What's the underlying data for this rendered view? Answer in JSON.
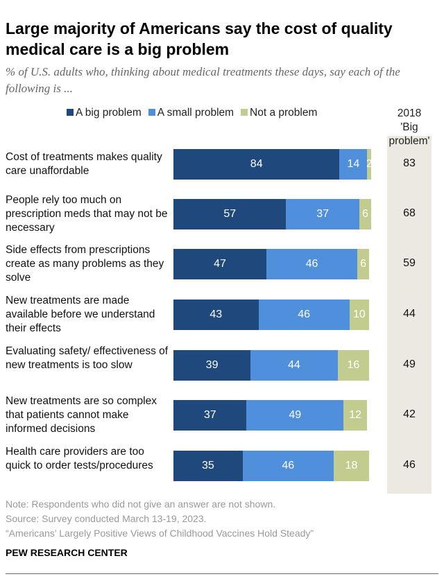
{
  "chart_data": {
    "type": "bar",
    "orientation": "horizontal-stacked",
    "title": "Large majority of Americans say the cost of quality medical care is a big problem",
    "subtitle": "% of U.S. adults who, thinking about medical treatments these days, say each of the following is ...",
    "categories": [
      "Cost of treatments makes quality care unaffordable",
      "People rely too much on prescription meds that may not be necessary",
      "Side effects from prescriptions create as many problems as they solve",
      "New treatments are made available before we understand their effects",
      "Evaluating safety/ effectiveness of new treatments is too slow",
      "New treatments are so complex that patients cannot make informed decisions",
      "Health care providers are too quick to order tests/procedures"
    ],
    "series": [
      {
        "name": "A big problem",
        "color": "#1f487c",
        "values": [
          84,
          57,
          47,
          43,
          39,
          37,
          35
        ]
      },
      {
        "name": "A small problem",
        "color": "#4f8fdc",
        "values": [
          14,
          37,
          46,
          46,
          44,
          49,
          46
        ]
      },
      {
        "name": "Not a problem",
        "color": "#c3cc8f",
        "values": [
          2,
          6,
          6,
          10,
          16,
          12,
          18
        ]
      }
    ],
    "column_2018": {
      "header_year": "2018",
      "header_label": "'Big problem'",
      "values": [
        83,
        68,
        59,
        44,
        49,
        42,
        46
      ]
    },
    "xlim": [
      0,
      100
    ],
    "legend": "top"
  },
  "footer": {
    "note": "Note: Respondents who did not give an answer are not shown.",
    "source": "Source: Survey conducted March 13-19, 2023.",
    "report": "“Americans’ Largely Positive Views of Childhood Vaccines Hold Steady”",
    "brand": "PEW RESEARCH CENTER"
  }
}
